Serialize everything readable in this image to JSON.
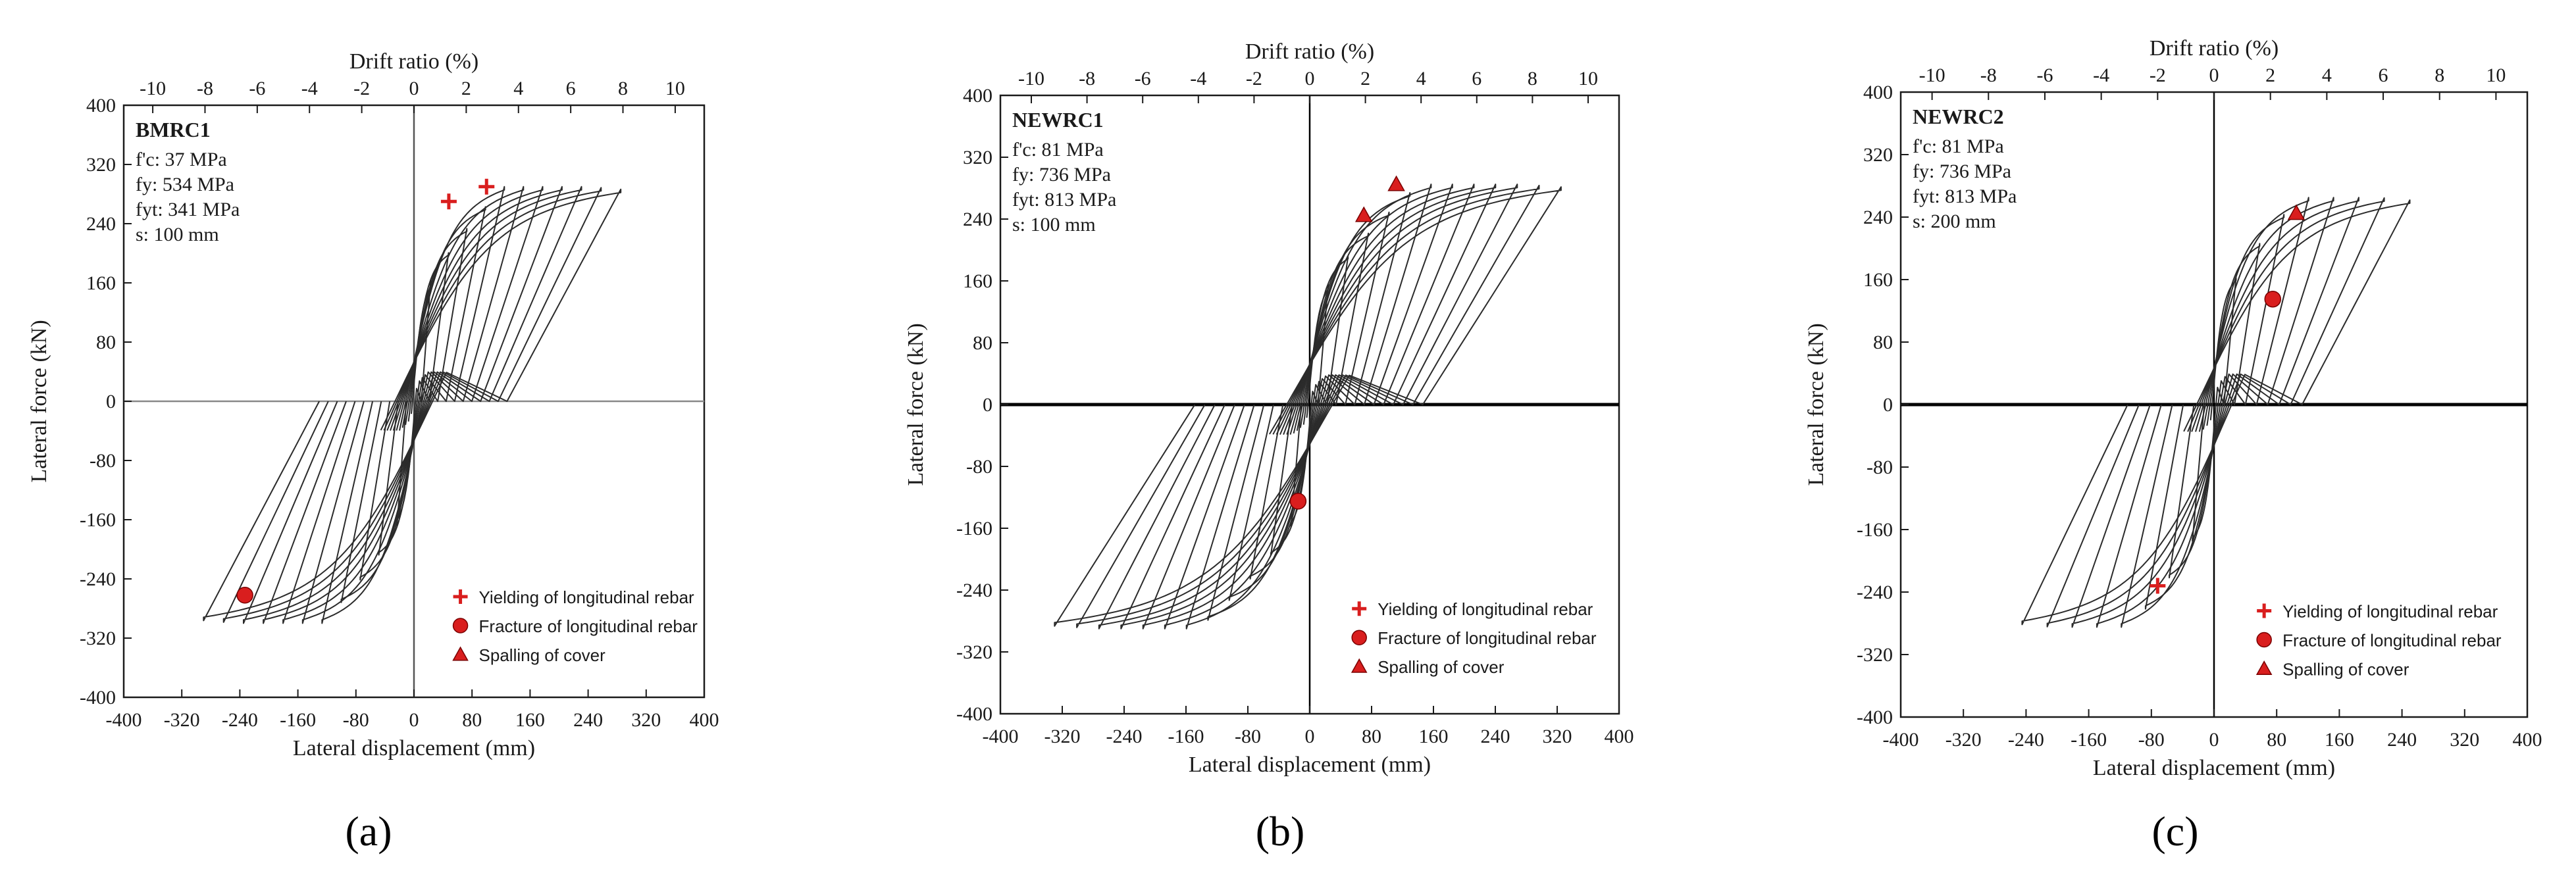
{
  "figure": {
    "panels_count": 3
  },
  "chart_data": [
    {
      "type": "line",
      "specimen": "BMRC1",
      "properties": [
        "f'c: 37 MPa",
        "fy: 534 MPa",
        "fyt: 341 MPa",
        "s: 100 mm"
      ],
      "xlabel": "Lateral displacement (mm)",
      "ylabel": "Lateral force (kN)",
      "top_xlabel": "Drift ratio (%)",
      "xlim": [
        -400,
        400
      ],
      "ylim": [
        -400,
        400
      ],
      "xticks": [
        -400,
        -320,
        -240,
        -160,
        -80,
        0,
        80,
        160,
        240,
        320,
        400
      ],
      "yticks": [
        -400,
        -320,
        -240,
        -160,
        -80,
        0,
        80,
        160,
        240,
        320,
        400
      ],
      "top_ticks": [
        -10,
        -8,
        -6,
        -4,
        -2,
        0,
        2,
        4,
        6,
        8,
        10
      ],
      "mm_per_percent": 36,
      "axis_line_style": "thin-gray",
      "hysteresis": {
        "max_disp_pos": 285,
        "max_disp_neg": -290,
        "peak_force_pos": 290,
        "peak_force_neg": -300,
        "cycles": 11,
        "color": "#2b2b2b"
      },
      "events": [
        {
          "type": "yielding",
          "x": 48,
          "y": 270
        },
        {
          "type": "yielding",
          "x": 100,
          "y": 290
        },
        {
          "type": "fracture",
          "x": -233,
          "y": -262
        }
      ],
      "legend": {
        "placement": "bottom-right",
        "items": [
          {
            "marker": "cross",
            "label": "Yielding of longitudinal rebar"
          },
          {
            "marker": "circle",
            "label": "Fracture of longitudinal rebar"
          },
          {
            "marker": "triangle",
            "label": "Spalling of cover"
          }
        ]
      },
      "panel_label": "(a)"
    },
    {
      "type": "line",
      "specimen": "NEWRC1",
      "properties": [
        "f'c: 81 MPa",
        "fy: 736 MPa",
        "fyt: 813 MPa",
        "s: 100 mm"
      ],
      "xlabel": "Lateral displacement (mm)",
      "ylabel": "Lateral force (kN)",
      "top_xlabel": "Drift ratio (%)",
      "xlim": [
        -400,
        400
      ],
      "ylim": [
        -400,
        400
      ],
      "xticks": [
        -400,
        -320,
        -240,
        -160,
        -80,
        0,
        80,
        160,
        240,
        320,
        400
      ],
      "yticks": [
        -400,
        -320,
        -240,
        -160,
        -80,
        0,
        80,
        160,
        240,
        320,
        400
      ],
      "top_ticks": [
        -10,
        -8,
        -6,
        -4,
        -2,
        0,
        2,
        4,
        6,
        8,
        10
      ],
      "mm_per_percent": 36,
      "axis_line_style": "thick-black",
      "hysteresis": {
        "max_disp_pos": 325,
        "max_disp_neg": -330,
        "peak_force_pos": 285,
        "peak_force_neg": -290,
        "cycles": 12,
        "color": "#2b2b2b"
      },
      "events": [
        {
          "type": "spalling",
          "x": 70,
          "y": 245
        },
        {
          "type": "spalling",
          "x": 112,
          "y": 285
        },
        {
          "type": "fracture",
          "x": -15,
          "y": -125
        }
      ],
      "legend": {
        "placement": "bottom-right",
        "items": [
          {
            "marker": "cross",
            "label": "Yielding of longitudinal rebar"
          },
          {
            "marker": "circle",
            "label": "Fracture of longitudinal rebar"
          },
          {
            "marker": "triangle",
            "label": "Spalling of cover"
          }
        ]
      },
      "panel_label": "(b)"
    },
    {
      "type": "line",
      "specimen": "NEWRC2",
      "properties": [
        "f'c: 81 MPa",
        "fy: 736 MPa",
        "fyt: 813 MPa",
        "s: 200 mm"
      ],
      "xlabel": "Lateral displacement (mm)",
      "ylabel": "Lateral force (kN)",
      "top_xlabel": "Drift ratio (%)",
      "xlim": [
        -400,
        400
      ],
      "ylim": [
        -400,
        400
      ],
      "xticks": [
        -400,
        -320,
        -240,
        -160,
        -80,
        0,
        80,
        160,
        240,
        320,
        400
      ],
      "yticks": [
        -400,
        -320,
        -240,
        -160,
        -80,
        0,
        80,
        160,
        240,
        320,
        400
      ],
      "top_ticks": [
        -10,
        -8,
        -6,
        -4,
        -2,
        0,
        2,
        4,
        6,
        8,
        10
      ],
      "mm_per_percent": 36,
      "axis_line_style": "thick-black",
      "hysteresis": {
        "max_disp_pos": 250,
        "max_disp_neg": -245,
        "peak_force_pos": 265,
        "peak_force_neg": -285,
        "cycles": 8,
        "color": "#2b2b2b"
      },
      "events": [
        {
          "type": "spalling",
          "x": 105,
          "y": 245
        },
        {
          "type": "fracture",
          "x": 75,
          "y": 135
        },
        {
          "type": "yielding",
          "x": -72,
          "y": -232
        }
      ],
      "legend": {
        "placement": "bottom-right",
        "items": [
          {
            "marker": "cross",
            "label": "Yielding of longitudinal rebar"
          },
          {
            "marker": "circle",
            "label": "Fracture of longitudinal rebar"
          },
          {
            "marker": "triangle",
            "label": "Spalling of cover"
          }
        ]
      },
      "panel_label": "(c)"
    }
  ],
  "colors": {
    "event_marker": "#d91e1e",
    "curve": "#2b2b2b",
    "frame": "#1a1a1a",
    "background": "#ffffff"
  }
}
